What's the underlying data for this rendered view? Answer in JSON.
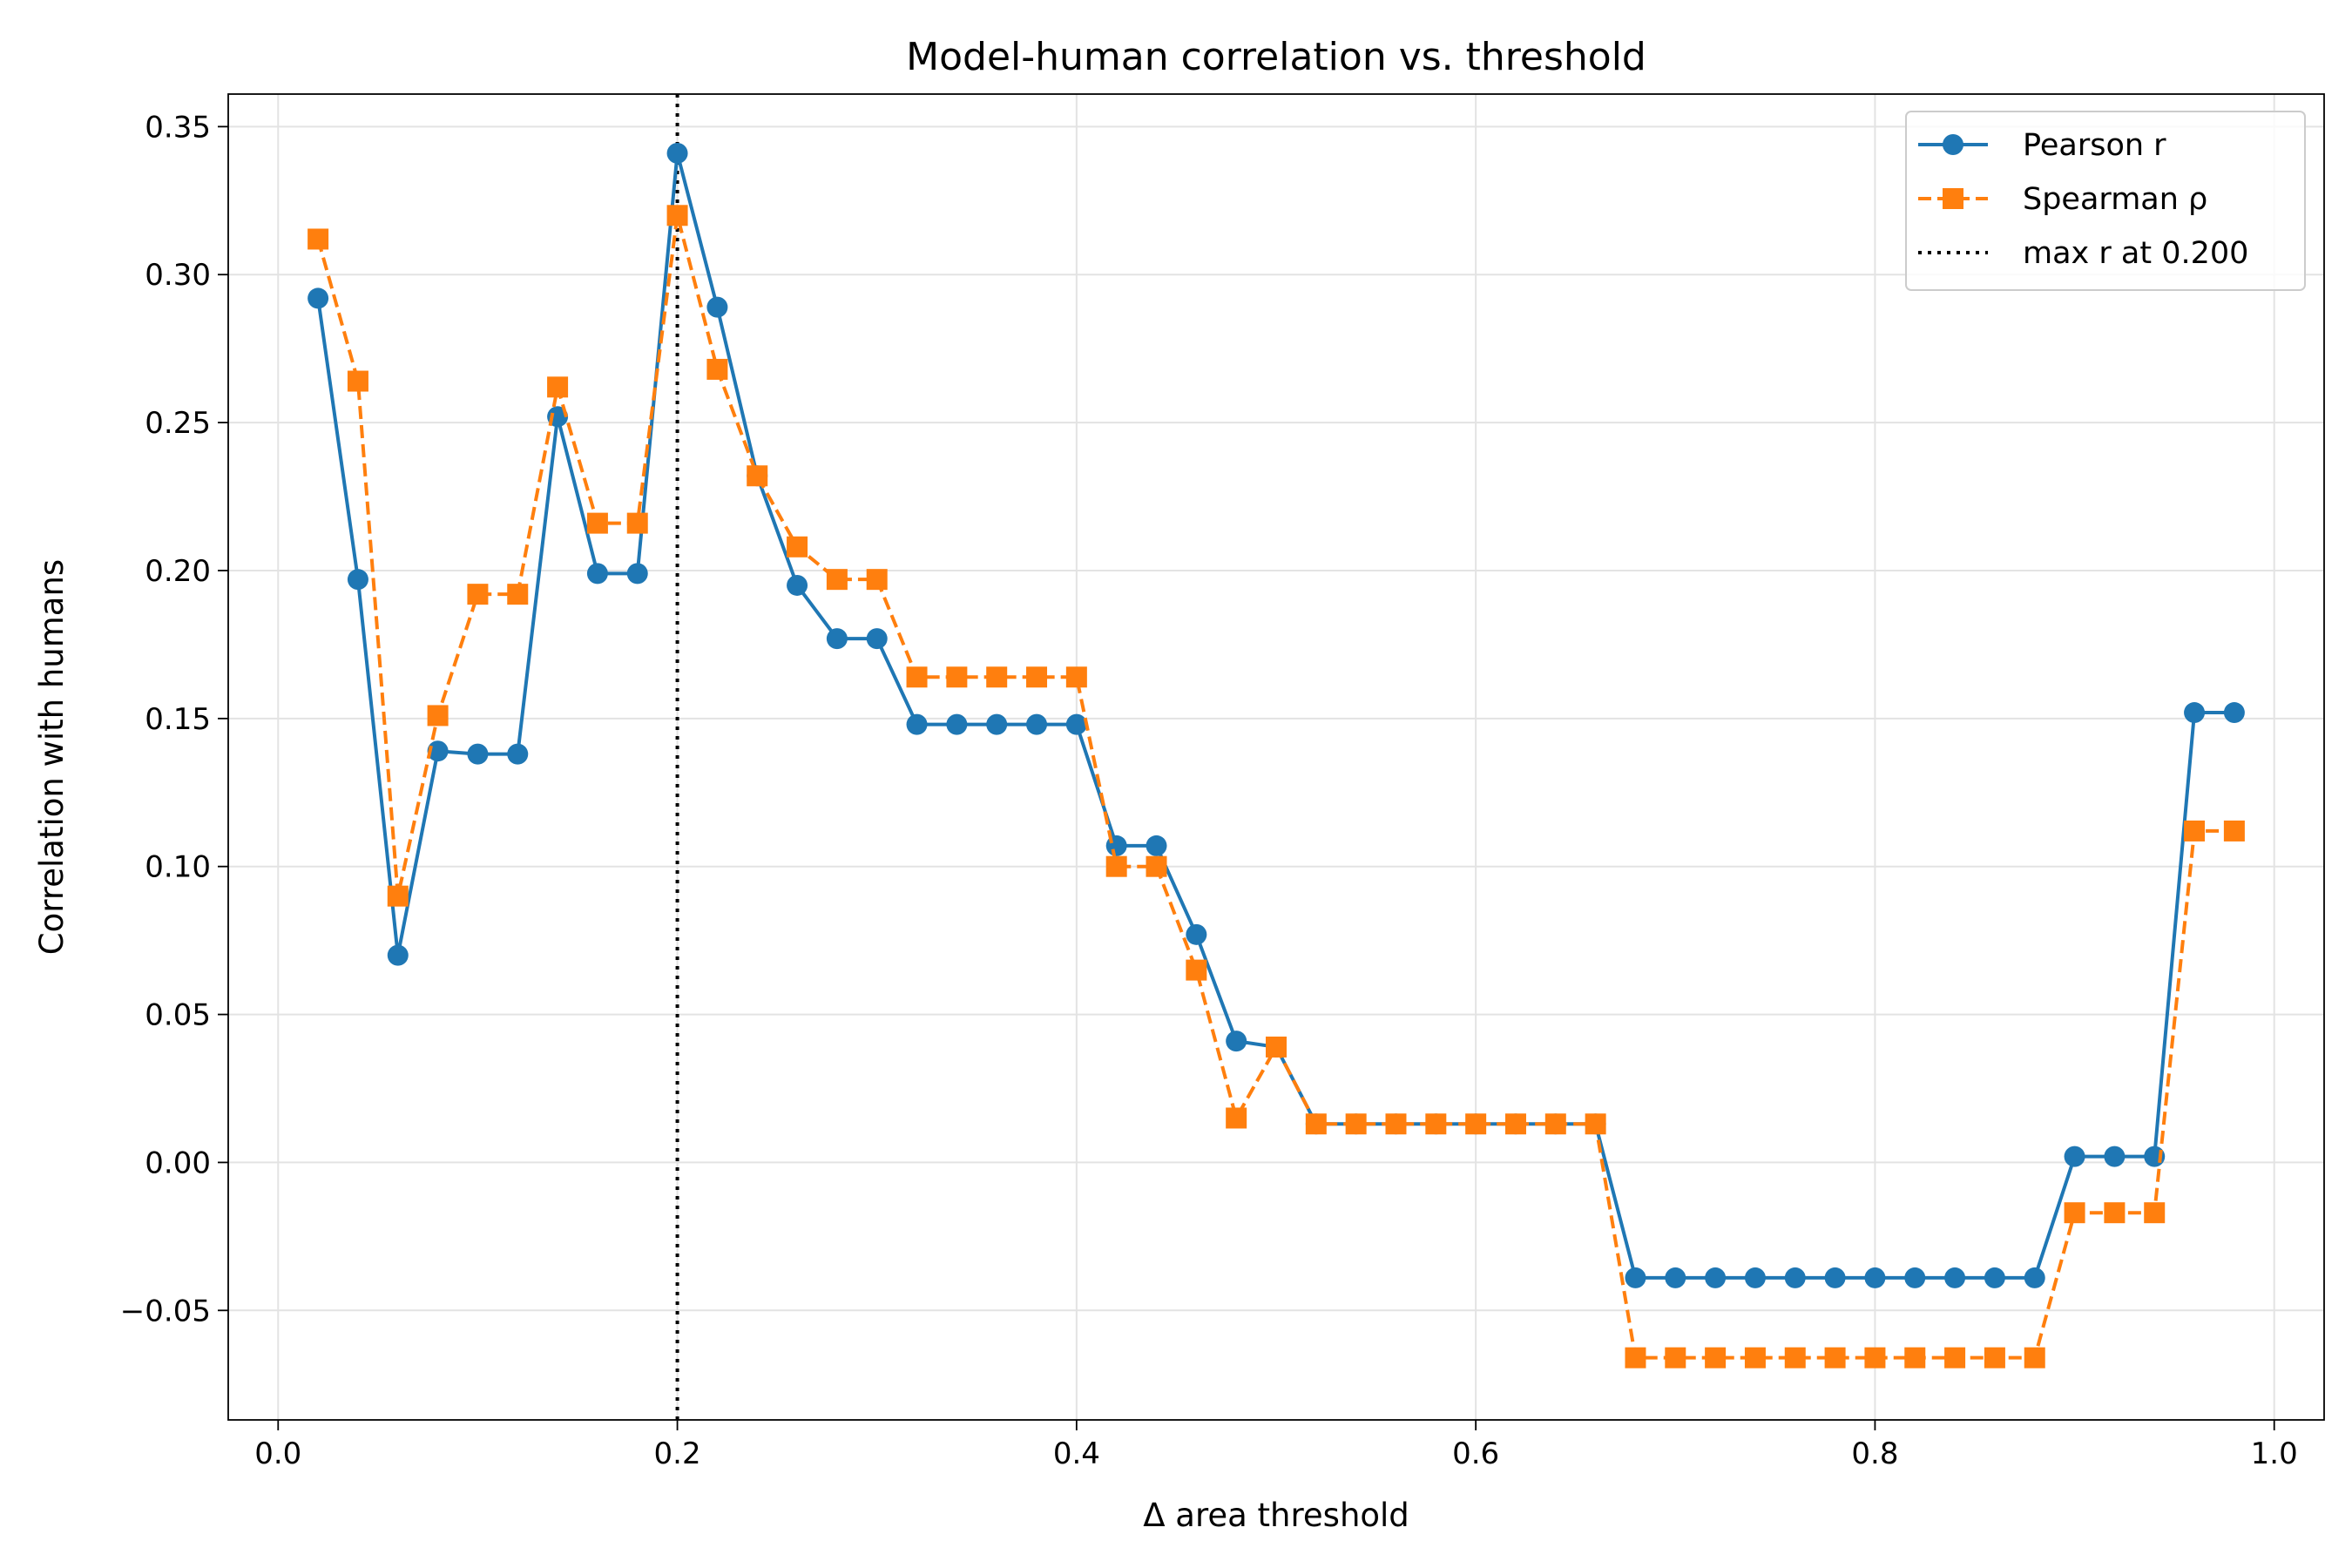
{
  "chart_data": {
    "type": "line",
    "title": "Model-human correlation vs. threshold",
    "xlabel": "Δ area threshold",
    "ylabel": "Correlation with humans",
    "xlim": [
      -0.025,
      1.025
    ],
    "ylim": [
      -0.087,
      0.361
    ],
    "xticks": [
      0.0,
      0.2,
      0.4,
      0.6,
      0.8,
      1.0
    ],
    "xtick_labels": [
      "0.0",
      "0.2",
      "0.4",
      "0.6",
      "0.8",
      "1.0"
    ],
    "yticks": [
      -0.05,
      0.0,
      0.05,
      0.1,
      0.15,
      0.2,
      0.25,
      0.3,
      0.35
    ],
    "ytick_labels": [
      "−0.05",
      "0.00",
      "0.05",
      "0.10",
      "0.15",
      "0.20",
      "0.25",
      "0.30",
      "0.35"
    ],
    "grid": true,
    "legend_position": "top-right",
    "x": [
      0.02,
      0.04,
      0.06,
      0.08,
      0.1,
      0.12,
      0.14,
      0.16,
      0.18,
      0.2,
      0.22,
      0.24,
      0.26,
      0.28,
      0.3,
      0.32,
      0.34,
      0.36,
      0.38,
      0.4,
      0.42,
      0.44,
      0.46,
      0.48,
      0.5,
      0.52,
      0.54,
      0.56,
      0.58,
      0.6,
      0.62,
      0.64,
      0.66,
      0.68,
      0.7,
      0.72,
      0.74,
      0.76,
      0.78,
      0.8,
      0.82,
      0.84,
      0.86,
      0.88,
      0.9,
      0.92,
      0.94,
      0.96,
      0.98
    ],
    "series": [
      {
        "name": "Pearson r",
        "color": "#1f77b4",
        "marker": "circle",
        "linestyle": "solid",
        "values": [
          0.292,
          0.197,
          0.07,
          0.139,
          0.138,
          0.138,
          0.252,
          0.199,
          0.199,
          0.341,
          0.289,
          0.232,
          0.195,
          0.177,
          0.177,
          0.148,
          0.148,
          0.148,
          0.148,
          0.148,
          0.107,
          0.107,
          0.077,
          0.041,
          0.039,
          0.013,
          0.013,
          0.013,
          0.013,
          0.013,
          0.013,
          0.013,
          0.013,
          -0.039,
          -0.039,
          -0.039,
          -0.039,
          -0.039,
          -0.039,
          -0.039,
          -0.039,
          -0.039,
          -0.039,
          -0.039,
          0.002,
          0.002,
          0.002,
          0.152,
          0.152
        ]
      },
      {
        "name": "Spearman ρ",
        "color": "#ff7f0e",
        "marker": "square",
        "linestyle": "dashed",
        "values": [
          0.312,
          0.264,
          0.09,
          0.151,
          0.192,
          0.192,
          0.262,
          0.216,
          0.216,
          0.32,
          0.268,
          0.232,
          0.208,
          0.197,
          0.197,
          0.164,
          0.164,
          0.164,
          0.164,
          0.164,
          0.1,
          0.1,
          0.065,
          0.015,
          0.039,
          0.013,
          0.013,
          0.013,
          0.013,
          0.013,
          0.013,
          0.013,
          0.013,
          -0.066,
          -0.066,
          -0.066,
          -0.066,
          -0.066,
          -0.066,
          -0.066,
          -0.066,
          -0.066,
          -0.066,
          -0.066,
          -0.017,
          -0.017,
          -0.017,
          0.112,
          0.112
        ]
      }
    ],
    "vline": {
      "x": 0.2,
      "label": "max r at 0.200",
      "color": "#000000",
      "linestyle": "dotted"
    }
  }
}
